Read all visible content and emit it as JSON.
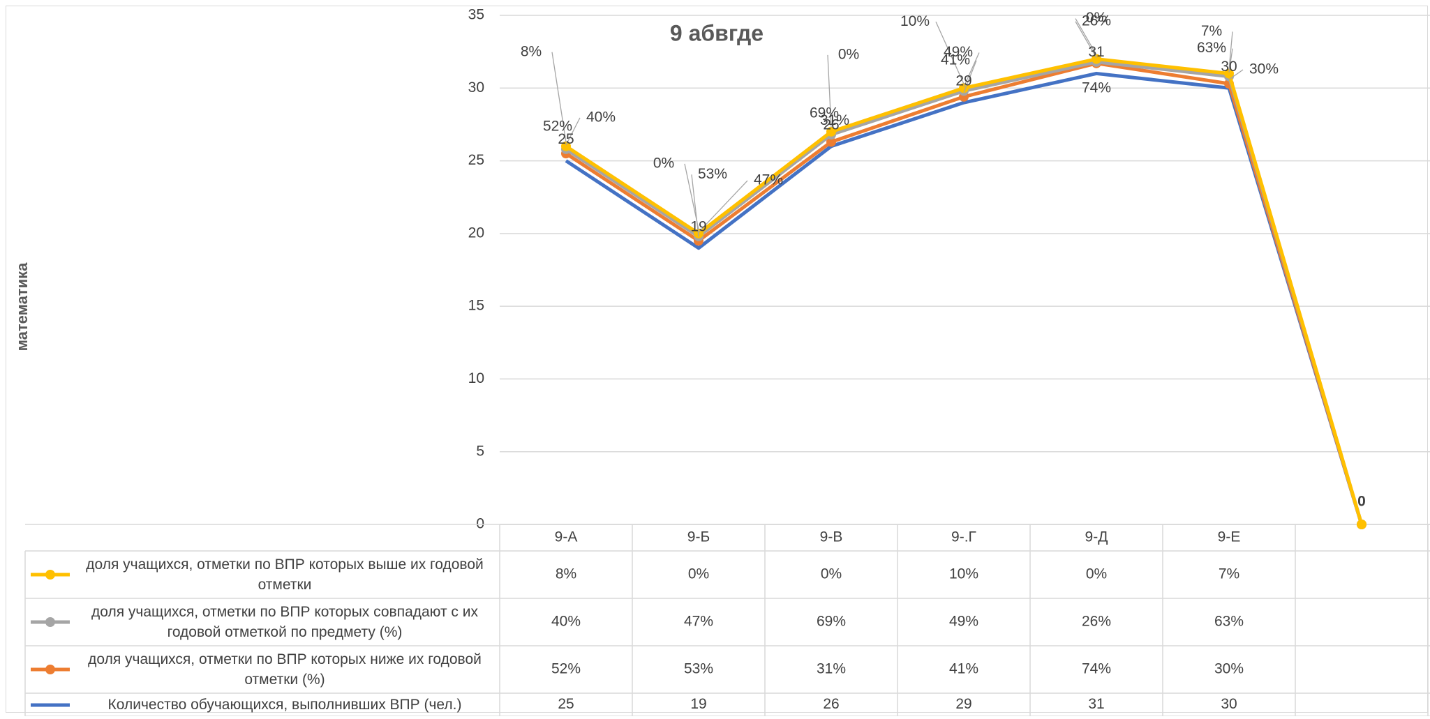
{
  "chart_data": {
    "type": "line",
    "title": "9 абвгде",
    "ylabel": "математика",
    "categories": [
      "9-А",
      "9-Б",
      "9-В",
      "9-.Г",
      "9-Д",
      "9-Е",
      ""
    ],
    "ylim": [
      0,
      35
    ],
    "yticks": [
      "0",
      "5",
      "10",
      "15",
      "20",
      "25",
      "30",
      "35"
    ],
    "grid": true,
    "legend": "table-bottom",
    "series": [
      {
        "name": "доля  учащихся, отметки по ВПР которых выше их годовой отметки",
        "color": "#FFC000",
        "marker": true,
        "values": [
          26,
          20,
          27,
          30,
          32,
          31,
          0
        ],
        "table_values": [
          "8%",
          "0%",
          "0%",
          "10%",
          "0%",
          "7%",
          ""
        ],
        "labels": [
          "8%",
          "0%",
          "0%",
          "10%",
          "0%",
          "7%",
          "0"
        ]
      },
      {
        "name": "доля учащихся, отметки по ВПР которых совпадают с их годовой отметкой по предмету (%)",
        "color": "#A5A5A5",
        "marker": true,
        "values": [
          25.8,
          19.8,
          26.8,
          29.8,
          31.8,
          30.8,
          0
        ],
        "table_values": [
          "40%",
          "47%",
          "69%",
          "49%",
          "26%",
          "63%",
          ""
        ],
        "labels": [
          "40%",
          "47%",
          "69%",
          "49%",
          "26%",
          "63%",
          ""
        ]
      },
      {
        "name": "доля учащихся, отметки по ВПР которых  ниже их годовой отметки (%)",
        "color": "#ED7D31",
        "marker": true,
        "values": [
          25.5,
          19.5,
          26.3,
          29.4,
          31.7,
          30.3,
          0
        ],
        "table_values": [
          "52%",
          "53%",
          "31%",
          "41%",
          "74%",
          "30%",
          ""
        ],
        "labels": [
          "52%",
          "53%",
          "31%",
          "41%",
          "74%",
          "30%",
          ""
        ]
      },
      {
        "name": "Количество обучающихся, выполнивших  ВПР (чел.)",
        "color": "#4472C4",
        "marker": false,
        "values": [
          25,
          19,
          26,
          29,
          31,
          30,
          0
        ],
        "table_values": [
          "25",
          "19",
          "26",
          "29",
          "31",
          "30",
          ""
        ],
        "labels": [
          "25",
          "19",
          "26",
          "29",
          "31",
          "30",
          ""
        ]
      }
    ]
  }
}
